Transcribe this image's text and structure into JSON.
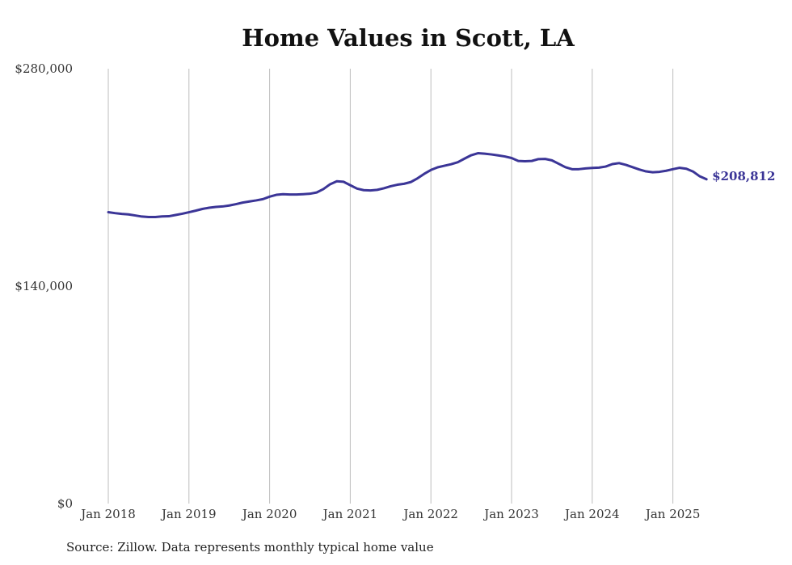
{
  "chart_data": {
    "type": "line",
    "title": "Home Values in Scott, LA",
    "xlabel": "",
    "ylabel": "",
    "ylim": [
      0,
      280000
    ],
    "y_ticks": [
      {
        "value": 0,
        "label": "$0"
      },
      {
        "value": 140000,
        "label": "$140,000"
      },
      {
        "value": 280000,
        "label": "$280,000"
      }
    ],
    "x_ticks": [
      {
        "value": "2018-01",
        "label": "Jan 2018"
      },
      {
        "value": "2019-01",
        "label": "Jan 2019"
      },
      {
        "value": "2020-01",
        "label": "Jan 2020"
      },
      {
        "value": "2021-01",
        "label": "Jan 2021"
      },
      {
        "value": "2022-01",
        "label": "Jan 2022"
      },
      {
        "value": "2023-01",
        "label": "Jan 2023"
      },
      {
        "value": "2024-01",
        "label": "Jan 2024"
      },
      {
        "value": "2025-01",
        "label": "Jan 2025"
      }
    ],
    "grid": {
      "vertical": true,
      "horizontal": false
    },
    "end_label": "$208,812",
    "series": [
      {
        "color": "#3b3597",
        "x": [
          "2018-01",
          "2018-02",
          "2018-03",
          "2018-04",
          "2018-05",
          "2018-06",
          "2018-07",
          "2018-08",
          "2018-09",
          "2018-10",
          "2018-11",
          "2018-12",
          "2019-01",
          "2019-02",
          "2019-03",
          "2019-04",
          "2019-05",
          "2019-06",
          "2019-07",
          "2019-08",
          "2019-09",
          "2019-10",
          "2019-11",
          "2019-12",
          "2020-01",
          "2020-02",
          "2020-03",
          "2020-04",
          "2020-05",
          "2020-06",
          "2020-07",
          "2020-08",
          "2020-09",
          "2020-10",
          "2020-11",
          "2020-12",
          "2021-01",
          "2021-02",
          "2021-03",
          "2021-04",
          "2021-05",
          "2021-06",
          "2021-07",
          "2021-08",
          "2021-09",
          "2021-10",
          "2021-11",
          "2021-12",
          "2022-01",
          "2022-02",
          "2022-03",
          "2022-04",
          "2022-05",
          "2022-06",
          "2022-07",
          "2022-08",
          "2022-09",
          "2022-10",
          "2022-11",
          "2022-12",
          "2023-01",
          "2023-02",
          "2023-03",
          "2023-04",
          "2023-05",
          "2023-06",
          "2023-07",
          "2023-08",
          "2023-09",
          "2023-10",
          "2023-11",
          "2023-12",
          "2024-01",
          "2024-02",
          "2024-03",
          "2024-04",
          "2024-05",
          "2024-06",
          "2024-07",
          "2024-08",
          "2024-09",
          "2024-10",
          "2024-11",
          "2024-12",
          "2025-01",
          "2025-02",
          "2025-03",
          "2025-04",
          "2025-05",
          "2025-06"
        ],
        "values": [
          187600,
          187000,
          186500,
          186200,
          185500,
          184800,
          184500,
          184500,
          184900,
          185000,
          185800,
          186600,
          187600,
          188600,
          189700,
          190500,
          191000,
          191300,
          191900,
          192800,
          193800,
          194500,
          195200,
          196000,
          197600,
          198800,
          199200,
          199000,
          199000,
          199200,
          199500,
          200300,
          202500,
          205600,
          207500,
          207200,
          205000,
          202800,
          201800,
          201600,
          202000,
          203000,
          204300,
          205300,
          205900,
          207000,
          209400,
          212300,
          214800,
          216500,
          217500,
          218500,
          219800,
          222100,
          224300,
          225600,
          225300,
          224800,
          224200,
          223500,
          222500,
          220600,
          220400,
          220600,
          221800,
          221900,
          221000,
          218800,
          216600,
          215300,
          215300,
          215800,
          216100,
          216300,
          217000,
          218600,
          219200,
          218100,
          216600,
          215100,
          213900,
          213300,
          213600,
          214300,
          215300,
          216200,
          215600,
          213800,
          210700,
          208812
        ]
      }
    ]
  },
  "source_note": "Source: Zillow. Data represents monthly typical home value"
}
